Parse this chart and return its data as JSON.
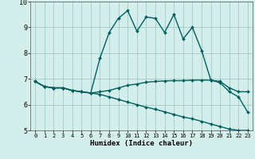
{
  "xlabel": "Humidex (Indice chaleur)",
  "xlim": [
    -0.5,
    23.5
  ],
  "ylim": [
    5,
    10
  ],
  "yticks": [
    5,
    6,
    7,
    8,
    9,
    10
  ],
  "xticks": [
    0,
    1,
    2,
    3,
    4,
    5,
    6,
    7,
    8,
    9,
    10,
    11,
    12,
    13,
    14,
    15,
    16,
    17,
    18,
    19,
    20,
    21,
    22,
    23
  ],
  "background_color": "#d4eeec",
  "grid_color": "#a0ccc8",
  "line_color": "#006060",
  "line_width": 1.0,
  "marker": "D",
  "marker_size": 2.0,
  "series_max": [
    6.9,
    6.7,
    6.65,
    6.65,
    6.55,
    6.5,
    6.45,
    7.8,
    8.8,
    9.35,
    9.65,
    8.85,
    9.4,
    9.35,
    8.8,
    9.5,
    8.55,
    9.0,
    8.1,
    6.95,
    6.85,
    6.5,
    6.3,
    5.7
  ],
  "series_mean": [
    6.9,
    6.7,
    6.65,
    6.65,
    6.55,
    6.5,
    6.45,
    6.5,
    6.55,
    6.65,
    6.75,
    6.8,
    6.87,
    6.9,
    6.92,
    6.93,
    6.93,
    6.95,
    6.95,
    6.95,
    6.9,
    6.65,
    6.5,
    6.5
  ],
  "series_min": [
    6.9,
    6.7,
    6.65,
    6.65,
    6.55,
    6.5,
    6.45,
    6.4,
    6.3,
    6.2,
    6.1,
    6.0,
    5.9,
    5.82,
    5.72,
    5.62,
    5.52,
    5.45,
    5.35,
    5.25,
    5.15,
    5.05,
    5.0,
    5.0
  ]
}
